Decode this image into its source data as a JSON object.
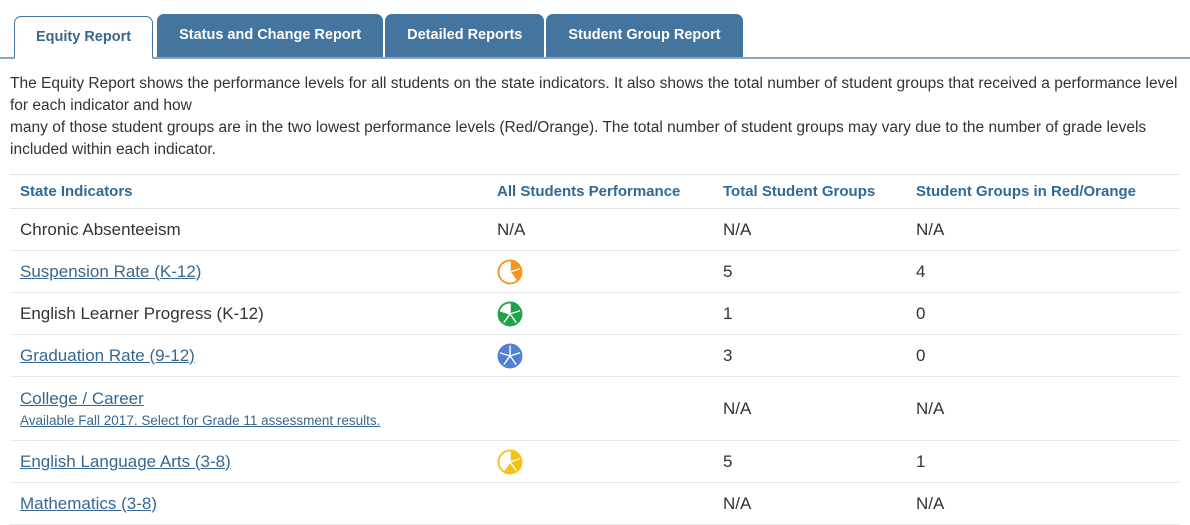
{
  "tabs": [
    {
      "label": "Equity Report",
      "active": true
    },
    {
      "label": "Status and Change Report",
      "active": false
    },
    {
      "label": "Detailed Reports",
      "active": false
    },
    {
      "label": "Student Group Report",
      "active": false
    }
  ],
  "intro": {
    "line1": "The Equity Report shows the performance levels for all students on the state indicators. It also shows the total number of student groups that received a performance level for each indicator and how",
    "line2": "many of those student groups are in the two lowest performance levels (Red/Orange). The total number of student groups may vary due to the number of grade levels included within each indicator."
  },
  "colors": {
    "tab_fill": "#44759e",
    "header_text": "#2f6a96",
    "link_text": "#38688f",
    "gauge_orange": "#F7941E",
    "gauge_green": "#1FA24A",
    "gauge_blue": "#537FD1",
    "gauge_yellow": "#F5C113"
  },
  "table": {
    "headers": [
      "State Indicators",
      "All Students Performance",
      "Total Student Groups",
      "Student Groups in Red/Orange"
    ],
    "rows": [
      {
        "indicator": "Chronic Absenteeism",
        "performance_text": "N/A",
        "total_groups": "N/A",
        "red_orange": "N/A"
      },
      {
        "indicator": "Suspension Rate (K-12)",
        "gauge": {
          "name": "orange-performance-gauge",
          "level": "orange",
          "color": "#F7941E",
          "filled": 2,
          "total": 5
        },
        "total_groups": "5",
        "red_orange": "4"
      },
      {
        "indicator": "English Learner Progress (K-12)",
        "gauge": {
          "name": "green-performance-gauge",
          "level": "green",
          "color": "#1FA24A",
          "filled": 4,
          "total": 5
        },
        "total_groups": "1",
        "red_orange": "0"
      },
      {
        "indicator": "Graduation Rate (9-12)",
        "gauge": {
          "name": "blue-performance-gauge",
          "level": "blue",
          "color": "#537FD1",
          "filled": 5,
          "total": 5
        },
        "total_groups": "3",
        "red_orange": "0"
      },
      {
        "indicator": "College / Career",
        "sublink": "Available Fall 2017. Select for Grade 11 assessment results.",
        "total_groups": "N/A",
        "red_orange": "N/A"
      },
      {
        "indicator": "English Language Arts (3-8)",
        "gauge": {
          "name": "yellow-performance-gauge",
          "level": "yellow",
          "color": "#F5C113",
          "filled": 3,
          "total": 5
        },
        "total_groups": "5",
        "red_orange": "1"
      },
      {
        "indicator": "Mathematics (3-8)",
        "total_groups": "N/A",
        "red_orange": "N/A"
      }
    ]
  }
}
